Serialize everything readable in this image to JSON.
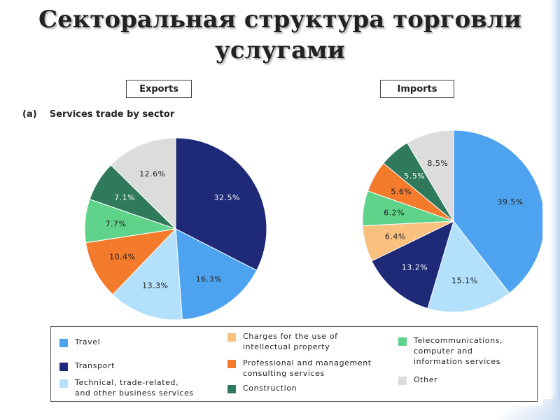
{
  "slide": {
    "title": "Секторальная структура торговли\nуслугами"
  },
  "figure": {
    "subtitle": "(a)    Services trade by sector"
  },
  "chart_data": [
    {
      "type": "pie",
      "title": "Exports",
      "categories": [
        "Travel",
        "Transport",
        "Technical, trade-related, and other business services",
        "Charges for the use of intellectual property",
        "Professional and management consulting services",
        "Construction",
        "Telecommunications, computer and information services",
        "Other"
      ],
      "slices": [
        {
          "category": "Transport",
          "value": 32.5,
          "label": "32.5%"
        },
        {
          "category": "Travel",
          "value": 16.3,
          "label": "16.3%"
        },
        {
          "category": "Technical, trade-related, and other business services",
          "value": 13.3,
          "label": "13.3%"
        },
        {
          "category": "Professional and management consulting services",
          "value": 10.4,
          "label": "10.4%"
        },
        {
          "category": "Telecommunications, computer and information services",
          "value": 7.7,
          "label": "7.7%"
        },
        {
          "category": "Construction",
          "value": 7.1,
          "label": "7.1%"
        },
        {
          "category": "Other",
          "value": 12.6,
          "label": "12.6%"
        }
      ]
    },
    {
      "type": "pie",
      "title": "Imports",
      "categories": [
        "Travel",
        "Transport",
        "Technical, trade-related, and other business services",
        "Charges for the use of intellectual property",
        "Professional and management consulting services",
        "Construction",
        "Telecommunications, computer and information services",
        "Other"
      ],
      "slices": [
        {
          "category": "Travel",
          "value": 39.5,
          "label": "39.5%"
        },
        {
          "category": "Technical, trade-related, and other business services",
          "value": 15.1,
          "label": "15.1%"
        },
        {
          "category": "Transport",
          "value": 13.2,
          "label": "13.2%"
        },
        {
          "category": "Charges for the use of intellectual property",
          "value": 6.4,
          "label": "6.4%"
        },
        {
          "category": "Telecommunications, computer and information services",
          "value": 6.2,
          "label": "6.2%"
        },
        {
          "category": "Professional and management consulting services",
          "value": 5.6,
          "label": "5.6%"
        },
        {
          "category": "Construction",
          "value": 5.5,
          "label": "5.5%"
        },
        {
          "category": "Other",
          "value": 8.5,
          "label": "8.5%"
        }
      ]
    }
  ],
  "legend": {
    "placement": "bottom",
    "items": [
      {
        "category": "Travel",
        "label": "Travel",
        "color": "#4da3f0"
      },
      {
        "category": "Transport",
        "label": "Transport",
        "color": "#1e2a78"
      },
      {
        "category": "Technical, trade-related, and other business services",
        "label": "Technical, trade-related,\nand other business services",
        "color": "#b3e0fb"
      },
      {
        "category": "Charges for the use of intellectual property",
        "label": "Charges for the use of\nintellectual property",
        "color": "#f9c07e"
      },
      {
        "category": "Professional and management consulting services",
        "label": "Professional and management\nconsulting services",
        "color": "#f47a2c"
      },
      {
        "category": "Construction",
        "label": "Construction",
        "color": "#2f7a5c"
      },
      {
        "category": "Telecommunications, computer and information services",
        "label": "Telecommunications,\ncomputer and\ninformation services",
        "color": "#5fd38a"
      },
      {
        "category": "Other",
        "label": "Other",
        "color": "#dcdcdc"
      }
    ]
  }
}
